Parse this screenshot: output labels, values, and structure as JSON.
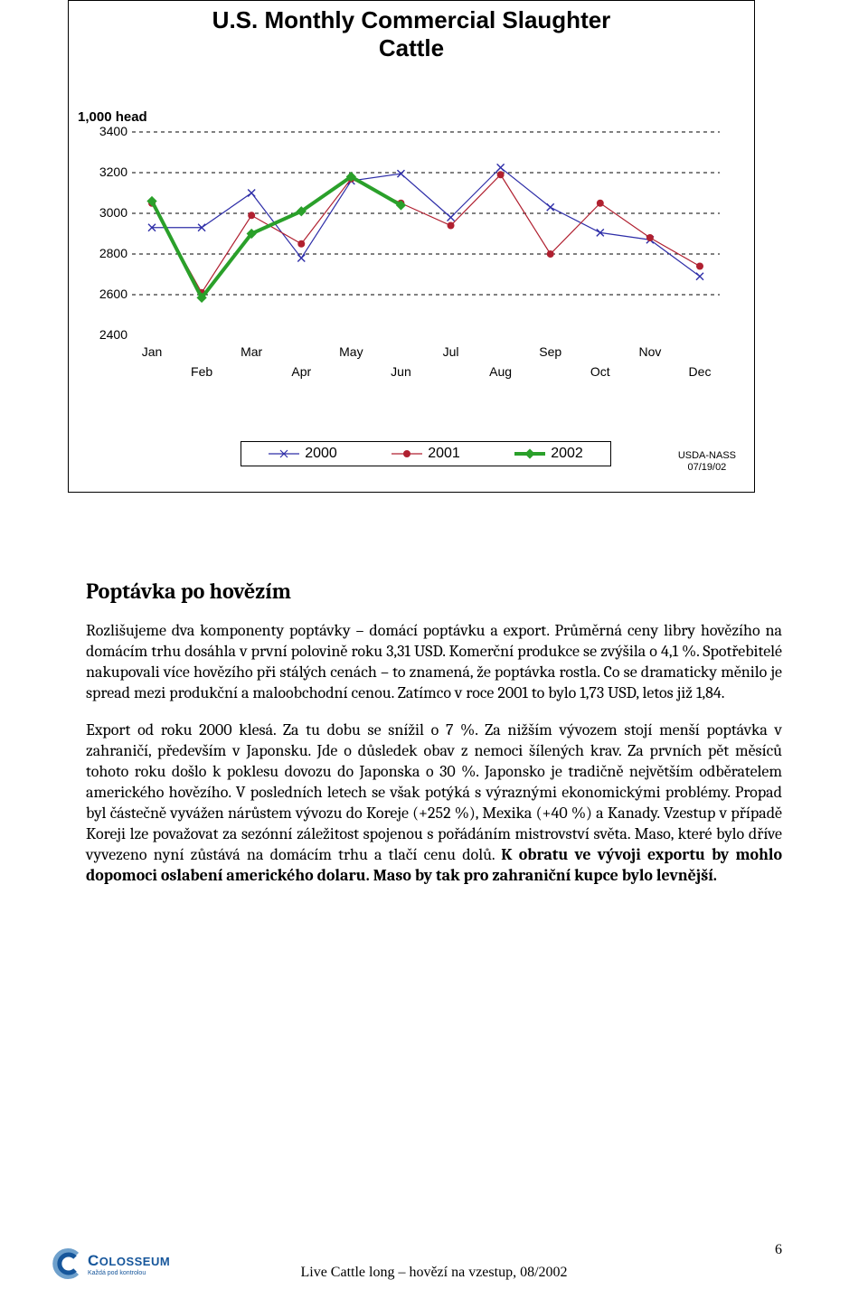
{
  "chart": {
    "type": "line",
    "title_line1": "U.S. Monthly Commercial Slaughter",
    "title_line2": "Cattle",
    "y_axis_title": "1,000 head",
    "ylim": [
      2400,
      3400
    ],
    "yticks": [
      2400,
      2600,
      2800,
      3000,
      3200,
      3400
    ],
    "categories": [
      "Jan",
      "Feb",
      "Mar",
      "Apr",
      "May",
      "Jun",
      "Jul",
      "Aug",
      "Sep",
      "Oct",
      "Nov",
      "Dec"
    ],
    "grid_color": "#000000",
    "grid_dash": "4,4",
    "background_color": "#ffffff",
    "border_color": "#000000",
    "label_fontsize": 14,
    "title_fontsize": 26,
    "series": [
      {
        "name": "2000",
        "color": "#2e2ea8",
        "marker": "x",
        "line_width": 1.2,
        "values": [
          2930,
          2930,
          3100,
          2780,
          3160,
          3195,
          2980,
          3225,
          3030,
          2905,
          2870,
          2690
        ]
      },
      {
        "name": "2001",
        "color": "#b02030",
        "marker": "circle",
        "line_width": 1.2,
        "values": [
          3050,
          2610,
          2990,
          2850,
          3170,
          3050,
          2940,
          3190,
          2800,
          3050,
          2880,
          2740
        ]
      },
      {
        "name": "2002",
        "color": "#2aa02a",
        "marker": "diamond",
        "line_width": 4,
        "values": [
          3060,
          2585,
          2900,
          3010,
          3180,
          3040
        ]
      }
    ],
    "legend_labels": [
      "2000",
      "2001",
      "2002"
    ],
    "source_line1": "USDA-NASS",
    "source_line2": "07/19/02"
  },
  "section": {
    "heading": "Poptávka po hovězím",
    "para1": "Rozlišujeme dva komponenty poptávky – domácí poptávku a export. Průměrná ceny libry hovězího na domácím trhu dosáhla v první polovině roku 3,31 USD. Komerční produkce se zvýšila o 4,1 %. Spotřebitelé nakupovali více hovězího při stálých cenách – to znamená, že poptávka rostla. Co se dramaticky měnilo je spread mezi produkční a maloobchodní cenou. Zatímco v roce 2001 to bylo 1,73 USD, letos již 1,84.",
    "para2_pre": "Export od roku 2000 klesá. Za tu dobu se snížil o 7 %. Za nižším vývozem stojí menší poptávka v zahraničí, především v Japonsku. Jde o důsledek obav z nemoci šílených krav. Za prvních pět měsíců tohoto roku došlo k poklesu dovozu do Japonska o 30 %. Japonsko je tradičně největším odběratelem amerického hovězího. V posledních letech se však potýká s výraznými ekonomickými problémy. Propad byl částečně vyvážen nárůstem vývozu do Koreje (+252 %), Mexika (+40 %) a Kanady. Vzestup v případě Koreji lze považovat za sezónní záležitost spojenou s pořádáním mistrovství světa. Maso, které bylo dříve vyvezeno nyní zůstává na domácím trhu a tlačí cenu dolů. ",
    "para2_bold": "K obratu ve vývoji exportu by mohlo dopomoci oslabení amerického dolaru. Maso by tak pro zahraniční kupce bylo levnější."
  },
  "footer": {
    "page_number": "6",
    "footer_text": "Live Cattle long – hovězí na vzestup, 08/2002",
    "logo_text": "OLOSSEUM",
    "logo_sub": "Každá pod kontrolou"
  },
  "colors": {
    "text": "#000000",
    "logo_blue": "#16569b",
    "logo_light": "#6ea0cc"
  }
}
